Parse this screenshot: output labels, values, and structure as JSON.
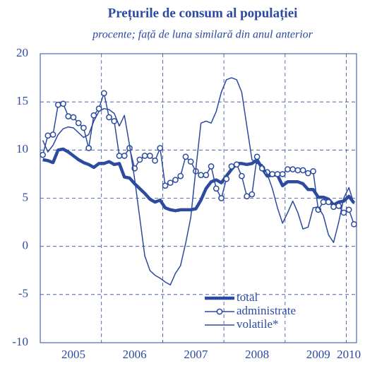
{
  "chart_data": {
    "type": "line",
    "title": "Prețurile de consum al populației",
    "subtitle": "procente; față de luna similară din anul anterior",
    "categories": [
      null,
      null,
      null,
      null,
      null,
      null,
      "2005",
      null,
      null,
      null,
      null,
      null,
      null,
      null,
      null,
      null,
      null,
      null,
      "2006",
      null,
      null,
      null,
      null,
      null,
      null,
      null,
      null,
      null,
      null,
      null,
      "2007",
      null,
      null,
      null,
      null,
      null,
      null,
      null,
      null,
      null,
      null,
      null,
      "2008",
      null,
      null,
      null,
      null,
      null,
      null,
      null,
      null,
      null,
      null,
      null,
      "2009",
      null,
      null,
      null,
      null,
      null,
      "2010",
      null
    ],
    "series": [
      {
        "name": "total",
        "color": "#2b4aa0",
        "width": 4.5,
        "markers": false,
        "values": [
          9.0,
          8.9,
          8.7,
          10.0,
          10.1,
          9.8,
          9.4,
          9.0,
          8.7,
          8.5,
          8.2,
          8.6,
          8.6,
          8.8,
          8.5,
          8.6,
          7.2,
          7.1,
          6.5,
          6.0,
          5.5,
          4.9,
          4.6,
          4.8,
          4.0,
          3.8,
          3.7,
          3.8,
          3.8,
          3.8,
          3.9,
          4.8,
          6.0,
          6.7,
          6.9,
          6.6,
          7.3,
          8.0,
          8.6,
          8.6,
          8.5,
          8.6,
          9.0,
          8.1,
          7.3,
          7.4,
          7.4,
          6.3,
          6.7,
          6.7,
          6.7,
          6.5,
          5.9,
          5.9,
          5.1,
          5.1,
          4.9,
          4.3,
          4.6,
          4.7,
          5.2,
          4.5
        ]
      },
      {
        "name": "administrate",
        "color": "#2b4aa0",
        "width": 1.5,
        "markers": true,
        "values": [
          9.5,
          11.5,
          11.6,
          14.7,
          14.8,
          13.5,
          13.4,
          12.8,
          12.3,
          10.2,
          13.6,
          14.3,
          15.9,
          13.4,
          13.0,
          9.4,
          9.4,
          10.2,
          8.1,
          9.0,
          9.4,
          9.4,
          8.9,
          10.2,
          6.3,
          6.6,
          6.9,
          7.3,
          9.3,
          8.8,
          7.8,
          7.4,
          7.4,
          8.3,
          6.0,
          5.0,
          7.0,
          8.3,
          8.5,
          7.3,
          5.2,
          5.4,
          9.3,
          8.1,
          7.7,
          7.5,
          7.5,
          7.5,
          8.0,
          8.0,
          7.9,
          7.9,
          7.6,
          7.8,
          3.8,
          4.6,
          4.6,
          4.1,
          4.2,
          3.5,
          3.8,
          2.3
        ]
      },
      {
        "name": "volatile*",
        "color": "#2b4aa0",
        "width": 1.5,
        "markers": false,
        "values": [
          11.0,
          9.8,
          10.5,
          11.6,
          12.2,
          12.4,
          12.3,
          11.8,
          11.3,
          11.6,
          13.0,
          14.0,
          14.3,
          14.2,
          13.8,
          12.5,
          13.6,
          10.5,
          7.0,
          3.0,
          -1.0,
          -2.5,
          -3.0,
          -3.3,
          -3.7,
          -4.0,
          -2.8,
          -2.0,
          0.3,
          3.0,
          8.0,
          12.8,
          13.0,
          12.8,
          14.0,
          16.0,
          17.3,
          17.5,
          17.3,
          16.0,
          12.5,
          9.0,
          8.6,
          8.5,
          7.5,
          6.0,
          4.0,
          2.4,
          3.5,
          4.7,
          3.5,
          1.8,
          2.0,
          4.0,
          4.1,
          3.2,
          1.2,
          0.4,
          2.5,
          5.0,
          6.1,
          4.4
        ]
      }
    ],
    "ylim": [
      -10,
      20
    ],
    "yticks": [
      -10,
      -5,
      0,
      5,
      10,
      15,
      20
    ],
    "grid": true
  }
}
